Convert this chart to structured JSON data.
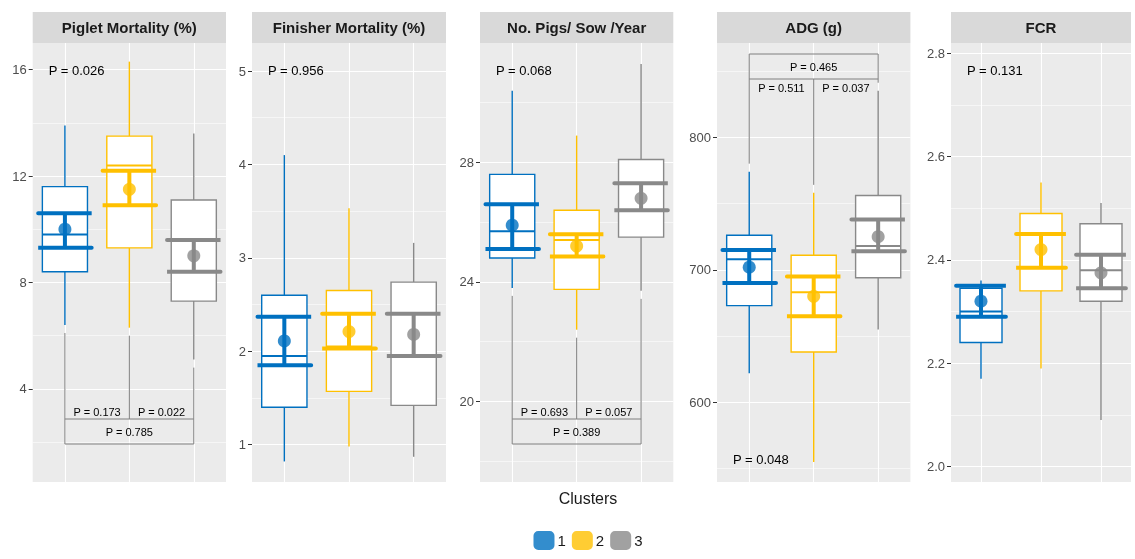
{
  "chart_data": [
    {
      "type": "box",
      "title": "Piglet Mortality (%)",
      "categories": [
        null,
        null,
        null
      ],
      "series": [
        {
          "colors": [
            "#0070c0",
            "#ffc000",
            "#898989"
          ],
          "boxes": [
            {
              "low": 6.4,
              "q1": 8.4,
              "median": 9.8,
              "q3": 11.6,
              "high": 13.9
            },
            {
              "low": 6.3,
              "q1": 9.3,
              "median": 12.4,
              "q3": 13.5,
              "high": 16.3
            },
            {
              "low": 5.1,
              "q1": 7.3,
              "median": 9.6,
              "q3": 11.1,
              "high": 13.6
            }
          ]
        },
        {
          "type": "scatter",
          "color": "#0070c0",
          "values": [
            10.0,
            null,
            null
          ],
          "errors": [
            [
              9.3,
              10.6
            ],
            null,
            null
          ]
        },
        {
          "type": "scatter",
          "color": "#ffc000",
          "values": [
            null,
            11.5,
            null
          ],
          "errors": [
            null,
            [
              10.9,
              12.2
            ],
            null
          ]
        },
        {
          "type": "scatter",
          "color": "#898989",
          "values": [
            null,
            null,
            9.0
          ],
          "errors": [
            null,
            null,
            [
              8.4,
              9.6
            ]
          ]
        }
      ],
      "ylim": [
        0.5,
        17
      ],
      "yticks": [
        4,
        8,
        12,
        16
      ],
      "grid": true,
      "tick_labels": "y",
      "marker": "circle",
      "annotations": [
        "P = 0.026",
        "P = 0.173",
        "P = 0.022",
        "P = 0.785"
      ]
    },
    {
      "type": "box",
      "title": "Finisher Mortality (%)",
      "categories": [
        null,
        null,
        null
      ],
      "series": [
        {
          "colors": [
            "#0070c0",
            "#ffc000",
            "#898989"
          ],
          "boxes": [
            {
              "low": 0.82,
              "q1": 1.4,
              "median": 1.95,
              "q3": 2.6,
              "high": 4.1
            },
            {
              "low": 0.98,
              "q1": 1.57,
              "median": 2.05,
              "q3": 2.65,
              "high": 3.53
            },
            {
              "low": 0.87,
              "q1": 1.42,
              "median": 1.95,
              "q3": 2.74,
              "high": 3.16
            }
          ]
        },
        {
          "type": "scatter",
          "color": "#0070c0",
          "values": [
            2.11,
            null,
            null
          ],
          "errors": [
            [
              1.85,
              2.37
            ],
            null,
            null
          ]
        },
        {
          "type": "scatter",
          "color": "#ffc000",
          "values": [
            null,
            2.21,
            null
          ],
          "errors": [
            null,
            [
              2.03,
              2.4
            ],
            null
          ]
        },
        {
          "type": "scatter",
          "color": "#898989",
          "values": [
            null,
            null,
            2.18
          ],
          "errors": [
            null,
            null,
            [
              1.95,
              2.4
            ]
          ]
        }
      ],
      "ylim": [
        0.6,
        5.3
      ],
      "yticks": [
        1,
        2,
        3,
        4,
        5
      ],
      "grid": true,
      "tick_labels": "y",
      "marker": "circle",
      "annotations": [
        "P = 0.956"
      ]
    },
    {
      "type": "box",
      "title": "No. Pigs/ Sow /Year",
      "categories": [
        null,
        null,
        null
      ],
      "series": [
        {
          "colors": [
            "#0070c0",
            "#ffc000",
            "#898989"
          ],
          "boxes": [
            {
              "low": 23.8,
              "q1": 24.8,
              "median": 25.7,
              "q3": 27.6,
              "high": 30.4
            },
            {
              "low": 22.4,
              "q1": 23.75,
              "median": 25.4,
              "q3": 26.4,
              "high": 28.9
            },
            {
              "low": 23.7,
              "q1": 25.5,
              "median": 27.3,
              "q3": 28.1,
              "high": 31.3
            }
          ]
        },
        {
          "type": "scatter",
          "name": "1",
          "color": "#0070c0",
          "values": [
            25.9,
            null,
            null
          ],
          "errors": [
            [
              25.1,
              26.6
            ],
            null,
            null
          ]
        },
        {
          "type": "scatter",
          "name": "2",
          "color": "#ffc000",
          "values": [
            null,
            25.2,
            null
          ],
          "errors": [
            null,
            [
              24.85,
              25.6
            ],
            null
          ]
        },
        {
          "type": "scatter",
          "name": "3",
          "color": "#898989",
          "values": [
            null,
            null,
            26.8
          ],
          "errors": [
            null,
            null,
            [
              26.4,
              27.3
            ]
          ]
        }
      ],
      "ylim": [
        17.3,
        32
      ],
      "yticks": [
        20,
        24,
        28
      ],
      "grid": true,
      "tick_labels": "y",
      "marker": "circle",
      "legend": "bottom",
      "legend_title": "Clusters",
      "annotations": [
        "P = 0.068",
        "P = 0.693",
        "P = 0.057",
        "P = 0.389"
      ]
    },
    {
      "type": "box",
      "title": "ADG (g)",
      "categories": [
        null,
        null,
        null
      ],
      "series": [
        {
          "colors": [
            "#0070c0",
            "#ffc000",
            "#898989"
          ],
          "boxes": [
            {
              "low": 622,
              "q1": 673,
              "median": 708,
              "q3": 726,
              "high": 774
            },
            {
              "low": 555,
              "q1": 638,
              "median": 683,
              "q3": 711,
              "high": 758
            },
            {
              "low": 655,
              "q1": 694,
              "median": 718,
              "q3": 756,
              "high": 835
            }
          ]
        },
        {
          "type": "scatter",
          "color": "#0070c0",
          "values": [
            702,
            null,
            null
          ],
          "errors": [
            [
              690,
              715
            ],
            null,
            null
          ]
        },
        {
          "type": "scatter",
          "color": "#ffc000",
          "values": [
            null,
            680,
            null
          ],
          "errors": [
            null,
            [
              665,
              695
            ],
            null
          ]
        },
        {
          "type": "scatter",
          "color": "#898989",
          "values": [
            null,
            null,
            725
          ],
          "errors": [
            null,
            null,
            [
              714,
              738
            ]
          ]
        }
      ],
      "ylim": [
        540,
        871
      ],
      "yticks": [
        600,
        700,
        800
      ],
      "grid": true,
      "tick_labels": "y",
      "marker": "circle",
      "annotations": [
        "P = 0.048",
        "P = 0.511",
        "P = 0.037",
        "P = 0.465"
      ]
    },
    {
      "type": "box",
      "title": "FCR",
      "categories": [
        null,
        null,
        null
      ],
      "series": [
        {
          "colors": [
            "#0070c0",
            "#ffc000",
            "#898989"
          ],
          "boxes": [
            {
              "low": 2.17,
              "q1": 2.24,
              "median": 2.3,
              "q3": 2.345,
              "high": 2.36
            },
            {
              "low": 2.19,
              "q1": 2.34,
              "median": 2.385,
              "q3": 2.49,
              "high": 2.55
            },
            {
              "low": 2.09,
              "q1": 2.32,
              "median": 2.38,
              "q3": 2.47,
              "high": 2.51
            }
          ]
        },
        {
          "type": "scatter",
          "color": "#0070c0",
          "values": [
            2.32,
            null,
            null
          ],
          "errors": [
            [
              2.29,
              2.35
            ],
            null,
            null
          ]
        },
        {
          "type": "scatter",
          "color": "#ffc000",
          "values": [
            null,
            2.42,
            null
          ],
          "errors": [
            null,
            [
              2.385,
              2.45
            ],
            null
          ]
        },
        {
          "type": "scatter",
          "color": "#898989",
          "values": [
            null,
            null,
            2.375
          ],
          "errors": [
            null,
            null,
            [
              2.345,
              2.41
            ]
          ]
        }
      ],
      "ylim": [
        1.97,
        2.82
      ],
      "yticks": [
        {
          "value": 2,
          "label": "2.0"
        },
        2.2,
        2.4,
        2.6,
        2.8
      ],
      "grid": true,
      "tick_labels": "y",
      "marker": "circle",
      "annotations": [
        "P = 0.131"
      ]
    }
  ]
}
